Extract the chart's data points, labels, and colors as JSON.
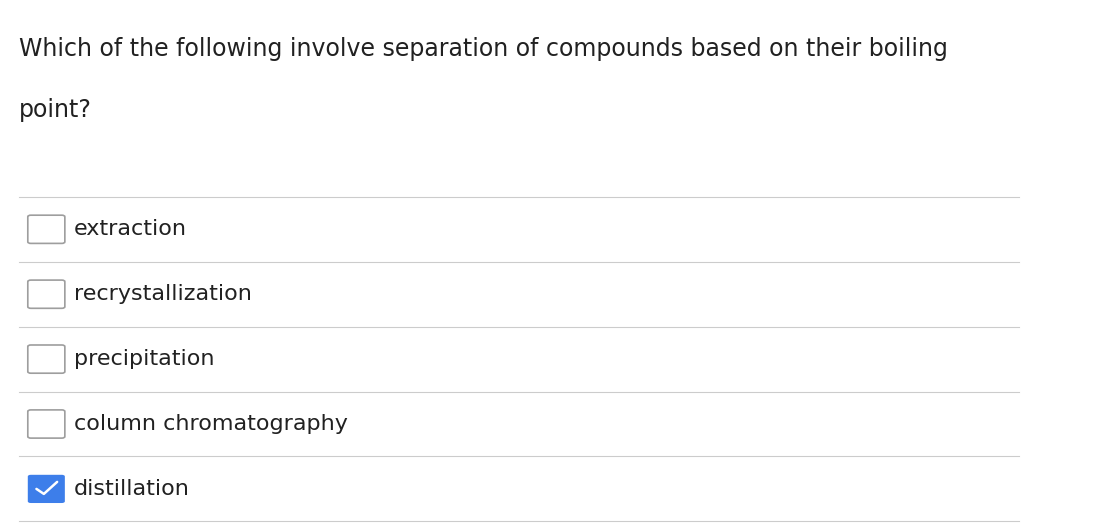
{
  "question_line1": "Which of the following involve separation of compounds based on their boiling",
  "question_line2": "point?",
  "options": [
    {
      "label": "extraction",
      "checked": false
    },
    {
      "label": "recrystallization",
      "checked": false
    },
    {
      "label": "precipitation",
      "checked": false
    },
    {
      "label": "column chromatography",
      "checked": false
    },
    {
      "label": "distillation",
      "checked": true
    }
  ],
  "background_color": "#ffffff",
  "text_color": "#212121",
  "line_color": "#cccccc",
  "checkbox_unchecked_border": "#9e9e9e",
  "checkbox_checked_bg": "#3d7eea",
  "checkbox_check_color": "#ffffff",
  "question_fontsize": 17,
  "option_fontsize": 16,
  "fig_width": 11.12,
  "fig_height": 5.32
}
